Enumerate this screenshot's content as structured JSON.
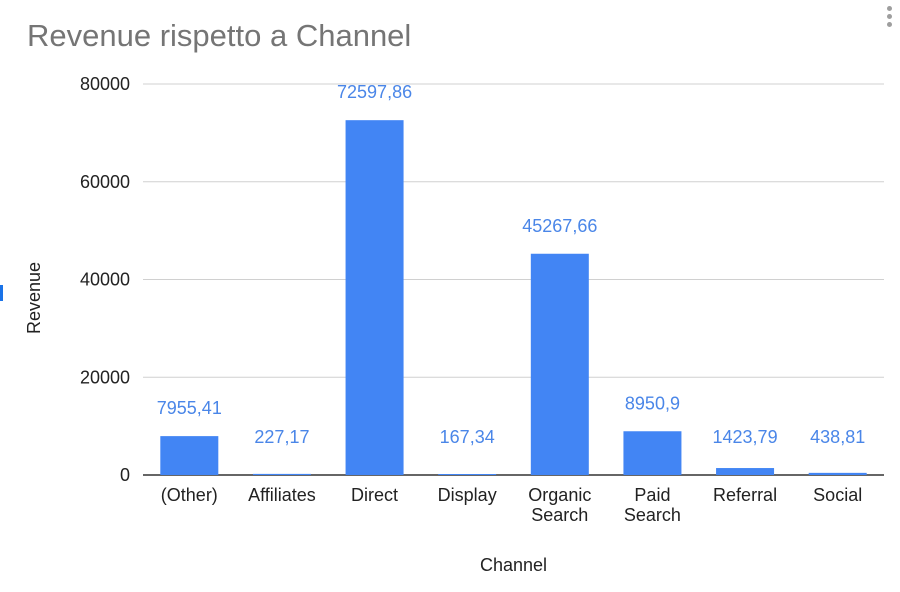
{
  "chart_data": {
    "type": "bar",
    "title": "Revenue rispetto a Channel",
    "xlabel": "Channel",
    "ylabel": "Revenue",
    "categories": [
      [
        "(Other)"
      ],
      [
        "Affiliates"
      ],
      [
        "Direct"
      ],
      [
        "Display"
      ],
      [
        "Organic",
        "Search"
      ],
      [
        "Paid",
        "Search"
      ],
      [
        "Referral"
      ],
      [
        "Social"
      ]
    ],
    "values": [
      7955.41,
      227.17,
      72597.86,
      167.34,
      45267.66,
      8950.9,
      1423.79,
      438.81
    ],
    "data_labels": [
      "7955,41",
      "227,17",
      "72597,86",
      "167,34",
      "45267,66",
      "8950,9",
      "1423,79",
      "438,81"
    ],
    "ylim": [
      0,
      80000
    ],
    "yticks": [
      "0",
      "20000",
      "40000",
      "60000",
      "80000"
    ],
    "grid": true,
    "legend": "none",
    "bar_color": "#4285f4",
    "label_color": "#4a86e8"
  }
}
